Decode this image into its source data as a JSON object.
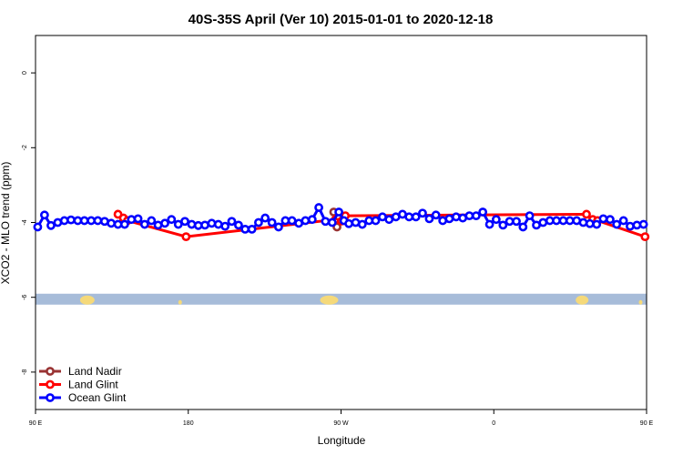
{
  "chart_data": {
    "type": "line",
    "title": "40S-35S April (Ver 10)   2015-01-01 to 2020-12-18",
    "xlabel": "Longitude",
    "ylabel": "XCO2 - MLO trend (ppm)",
    "xlim": [
      90,
      450
    ],
    "ylim": [
      -9,
      1
    ],
    "x_ticks": [
      {
        "value": 90,
        "label": "90 E"
      },
      {
        "value": 180,
        "label": "180"
      },
      {
        "value": 270,
        "label": "90 W"
      },
      {
        "value": 360,
        "label": "0"
      },
      {
        "value": 450,
        "label": "90 E"
      },
      {
        "value": 540,
        "label": "180"
      }
    ],
    "y_ticks": [
      {
        "value": 0,
        "label": "0"
      },
      {
        "value": -2,
        "label": "-2"
      },
      {
        "value": -4,
        "label": "-4"
      },
      {
        "value": -6,
        "label": "-6"
      },
      {
        "value": -8,
        "label": "-8"
      }
    ],
    "grid": false,
    "legend_position": "bottom-left",
    "map_strip": {
      "y_center": -6.05,
      "ocean_color": "#a7bcd9",
      "land_color": "#f5d97a"
    },
    "series": [
      {
        "name": "Land Nadir",
        "color": "#993333",
        "x": [
          265.7,
          267.6
        ],
        "y": [
          -3.72,
          -4.12
        ]
      },
      {
        "name": "Land Glint",
        "color": "#ff0000",
        "x": [
          138.6,
          141.8,
          144.2,
          178.7,
          266.7,
          268.6,
          270.3,
          272.5,
          414.6,
          418.3,
          421.1,
          449.1
        ],
        "y": [
          -3.78,
          -3.88,
          -3.95,
          -4.38,
          -3.92,
          -3.84,
          -3.96,
          -3.82,
          -3.78,
          -3.92,
          -3.95,
          -4.38
        ]
      },
      {
        "name": "Ocean Glint",
        "color": "#0000ff",
        "x": [
          91.3,
          95.3,
          99.1,
          103.1,
          107.0,
          110.9,
          114.9,
          118.8,
          122.8,
          126.7,
          130.7,
          134.6,
          138.6,
          142.5,
          146.5,
          150.4,
          154.3,
          158.3,
          162.2,
          166.2,
          170.1,
          174.1,
          178.0,
          182.0,
          185.9,
          189.8,
          193.8,
          197.7,
          201.7,
          205.6,
          209.6,
          213.5,
          217.5,
          221.4,
          225.3,
          229.3,
          233.2,
          237.2,
          241.1,
          245.1,
          249.0,
          253.0,
          256.9,
          260.8,
          264.8,
          268.7,
          271.7,
          274.6,
          278.6,
          282.5,
          286.5,
          290.4,
          294.4,
          298.3,
          302.3,
          306.2,
          310.1,
          314.1,
          318.0,
          322.0,
          325.9,
          329.9,
          333.8,
          337.8,
          341.7,
          345.6,
          349.6,
          353.5,
          357.5,
          361.4,
          365.4,
          369.3,
          373.3,
          377.2,
          381.1,
          385.1,
          389.0,
          393.0,
          396.9,
          400.9,
          404.8,
          408.8,
          412.7,
          416.6,
          420.6,
          424.5,
          428.5,
          432.4,
          436.4,
          440.3,
          444.3,
          448.2
        ],
        "y": [
          -4.12,
          -3.8,
          -4.08,
          -4.0,
          -3.95,
          -3.93,
          -3.95,
          -3.95,
          -3.95,
          -3.95,
          -3.97,
          -4.02,
          -4.05,
          -4.05,
          -3.92,
          -3.9,
          -4.05,
          -3.95,
          -4.07,
          -4.02,
          -3.92,
          -4.05,
          -3.97,
          -4.05,
          -4.08,
          -4.07,
          -4.02,
          -4.05,
          -4.1,
          -3.97,
          -4.07,
          -4.18,
          -4.18,
          -4.0,
          -3.88,
          -4.0,
          -4.12,
          -3.95,
          -3.95,
          -4.02,
          -3.95,
          -3.92,
          -3.6,
          -3.97,
          -4.0,
          -3.72,
          -3.95,
          -4.03,
          -4.0,
          -4.05,
          -3.95,
          -3.95,
          -3.85,
          -3.92,
          -3.85,
          -3.78,
          -3.85,
          -3.85,
          -3.75,
          -3.9,
          -3.8,
          -3.95,
          -3.9,
          -3.85,
          -3.88,
          -3.82,
          -3.82,
          -3.72,
          -4.05,
          -3.92,
          -4.07,
          -3.97,
          -3.97,
          -4.12,
          -3.82,
          -4.07,
          -4.0,
          -3.95,
          -3.95,
          -3.95,
          -3.95,
          -3.95,
          -4.0,
          -4.03,
          -4.05,
          -3.9,
          -3.92,
          -4.05,
          -3.95,
          -4.1,
          -4.07,
          -4.05
        ]
      }
    ]
  }
}
